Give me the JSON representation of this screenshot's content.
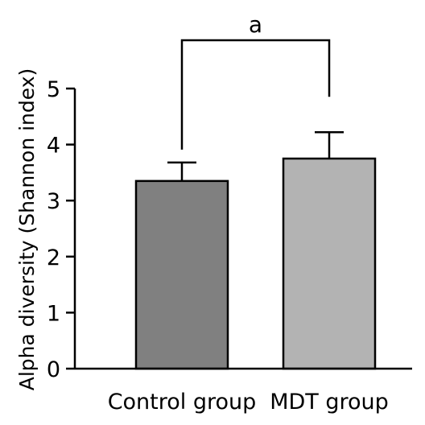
{
  "chart_data": {
    "type": "bar",
    "categories": [
      "Control group",
      "MDT group"
    ],
    "values": [
      3.35,
      3.75
    ],
    "error_upper": [
      3.68,
      4.22
    ],
    "ylabel": "Alpha diversity (Shannon index)",
    "xlabel": "",
    "title": "",
    "ylim": [
      0,
      5
    ],
    "yticks": [
      "0",
      "1",
      "2",
      "3",
      "4",
      "5"
    ],
    "significance": {
      "label": "a",
      "between": [
        0,
        1
      ]
    },
    "colors": [
      "#808080",
      "#b3b3b3"
    ],
    "grid": false,
    "legend": "none"
  }
}
